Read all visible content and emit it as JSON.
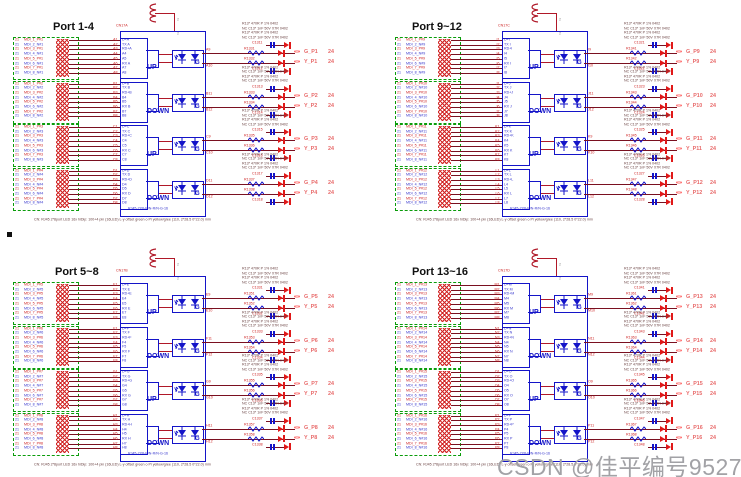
{
  "watermark": {
    "text": "CSDN @佳平编号9527"
  },
  "colors": {
    "blue": "#1414c8",
    "wire": "#7a1020",
    "red": "#cc2222",
    "green_box": "#0a9c0a",
    "flag": "#ff1c1c",
    "pink": "#e86a6a",
    "watermark": "#a2a2a6"
  },
  "left_page_ref": "21",
  "right_page_ref": "24",
  "shield_pin": "2",
  "flag_glyph": "«»",
  "led_labels": [
    "Y",
    "G"
  ],
  "pin_name_pattern": [
    "D+{L}",
    "TX {L}",
    "RD+{L}",
    "{L}4",
    "{L}5",
    "RX {L}",
    "{L}7",
    "{L}8"
  ],
  "connector_part": "RJ45-2X8-R/N-R/N-G-16",
  "connector_note": "CN: RJ45 2*8port LED 16x hiDip: 100+4 pin (16LED) L-y offset green o Pi yellow/gree (110, 2*28.5 0*22.0) mm",
  "rc_notes": [
    "R13* 470R P 1% 0402",
    "NC C13* 1nF 50V X7R 0402",
    "R13* 470R P 1% 0402",
    "NC C13* 1nF 50V X7R 0402"
  ],
  "quadrants": [
    {
      "title": "Port 1-4",
      "connector_ref": "CN17A",
      "groups": [
        {
          "letter": "A",
          "orientation": "UP",
          "led_pins": [
            "A9",
            "A10"
          ],
          "signals": [
            "MDI_1_P#1",
            "MDI_2_N#1",
            "MDI_3_P#1",
            "MDI_4_N#1",
            "MDI_5_P#1",
            "MDI_6_N#1",
            "MDI_7_P#1",
            "MDI_8_N#1"
          ],
          "outputs": [
            {
              "res": "R1331",
              "cap": "C1311",
              "flag": "G_P1"
            },
            {
              "res": "R1332",
              "cap": "C1312",
              "flag": "Y_P1"
            }
          ]
        },
        {
          "letter": "B",
          "orientation": "DOWN",
          "led_pins": [
            "B11",
            "B12"
          ],
          "signals": [
            "MDI_1_P#2",
            "MDI_2_N#2",
            "MDI_3_P#2",
            "MDI_4_N#2",
            "MDI_5_P#2",
            "MDI_6_N#2",
            "MDI_7_P#2",
            "MDI_8_N#2"
          ],
          "outputs": [
            {
              "res": "R1333",
              "cap": "C1313",
              "flag": "G_P2"
            },
            {
              "res": "R1334",
              "cap": "C1314",
              "flag": "Y_P2"
            }
          ]
        },
        {
          "letter": "C",
          "orientation": "UP",
          "led_pins": [
            "C9",
            "C10"
          ],
          "signals": [
            "MDI_1_P#3",
            "MDI_2_N#3",
            "MDI_3_P#3",
            "MDI_4_N#3",
            "MDI_5_P#3",
            "MDI_6_N#3",
            "MDI_7_P#3",
            "MDI_8_N#3"
          ],
          "outputs": [
            {
              "res": "R1335",
              "cap": "C1315",
              "flag": "G_P3"
            },
            {
              "res": "R1336",
              "cap": "C1316",
              "flag": "Y_P3"
            }
          ]
        },
        {
          "letter": "D",
          "orientation": "DOWN",
          "led_pins": [
            "D11",
            "D12"
          ],
          "signals": [
            "MDI_1_P#4",
            "MDI_2_N#4",
            "MDI_3_P#4",
            "MDI_4_N#4",
            "MDI_5_P#4",
            "MDI_6_N#4",
            "MDI_7_P#4",
            "MDI_8_N#4"
          ],
          "outputs": [
            {
              "res": "R1337",
              "cap": "C1317",
              "flag": "G_P4"
            },
            {
              "res": "R1338",
              "cap": "C1318",
              "flag": "Y_P4"
            }
          ]
        }
      ]
    },
    {
      "title": "Port 9~12",
      "connector_ref": "CN17C",
      "groups": [
        {
          "letter": "I",
          "orientation": "UP",
          "led_pins": [
            "I9",
            "I10"
          ],
          "signals": [
            "MDI_1_P#9",
            "MDI_2_N#9",
            "MDI_3_P#9",
            "MDI_4_N#9",
            "MDI_5_P#9",
            "MDI_6_N#9",
            "MDI_7_P#9",
            "MDI_8_N#9"
          ],
          "outputs": [
            {
              "res": "R1341",
              "cap": "C1321",
              "flag": "G_P9"
            },
            {
              "res": "R1342",
              "cap": "C1322",
              "flag": "Y_P9"
            }
          ]
        },
        {
          "letter": "J",
          "orientation": "DOWN",
          "led_pins": [
            "J11",
            "J12"
          ],
          "signals": [
            "MDI_1_P#10",
            "MDI_2_N#10",
            "MDI_3_P#10",
            "MDI_4_N#10",
            "MDI_5_P#10",
            "MDI_6_N#10",
            "MDI_7_P#10",
            "MDI_8_N#10"
          ],
          "outputs": [
            {
              "res": "R1343",
              "cap": "C1323",
              "flag": "G_P10"
            },
            {
              "res": "R1344",
              "cap": "C1324",
              "flag": "Y_P10"
            }
          ]
        },
        {
          "letter": "K",
          "orientation": "UP",
          "led_pins": [
            "K9",
            "K10"
          ],
          "signals": [
            "MDI_1_P#11",
            "MDI_2_N#11",
            "MDI_3_P#11",
            "MDI_4_N#11",
            "MDI_5_P#11",
            "MDI_6_N#11",
            "MDI_7_P#11",
            "MDI_8_N#11"
          ],
          "outputs": [
            {
              "res": "R1345",
              "cap": "C1325",
              "flag": "G_P11"
            },
            {
              "res": "R1346",
              "cap": "C1326",
              "flag": "Y_P11"
            }
          ]
        },
        {
          "letter": "L",
          "orientation": "DOWN",
          "led_pins": [
            "L11",
            "L12"
          ],
          "signals": [
            "MDI_1_P#12",
            "MDI_2_N#12",
            "MDI_3_P#12",
            "MDI_4_N#12",
            "MDI_5_P#12",
            "MDI_6_N#12",
            "MDI_7_P#12",
            "MDI_8_N#12"
          ],
          "outputs": [
            {
              "res": "R1347",
              "cap": "C1327",
              "flag": "G_P12"
            },
            {
              "res": "R1348",
              "cap": "C1328",
              "flag": "Y_P12"
            }
          ]
        }
      ]
    },
    {
      "title": "Port 5~8",
      "connector_ref": "CN17B",
      "groups": [
        {
          "letter": "E",
          "orientation": "UP",
          "led_pins": [
            "E9",
            "E10"
          ],
          "signals": [
            "MDI_1_P#5",
            "MDI_2_N#5",
            "MDI_3_P#5",
            "MDI_4_N#5",
            "MDI_5_P#5",
            "MDI_6_N#5",
            "MDI_7_P#5",
            "MDI_8_N#5"
          ],
          "outputs": [
            {
              "res": "R1351",
              "cap": "C1331",
              "flag": "G_P5"
            },
            {
              "res": "R1352",
              "cap": "C1332",
              "flag": "Y_P5"
            }
          ]
        },
        {
          "letter": "F",
          "orientation": "DOWN",
          "led_pins": [
            "F11",
            "F12"
          ],
          "signals": [
            "MDI_1_P#6",
            "MDI_2_N#6",
            "MDI_3_P#6",
            "MDI_4_N#6",
            "MDI_5_P#6",
            "MDI_6_N#6",
            "MDI_7_P#6",
            "MDI_8_N#6"
          ],
          "outputs": [
            {
              "res": "R1353",
              "cap": "C1333",
              "flag": "G_P6"
            },
            {
              "res": "R1354",
              "cap": "C1334",
              "flag": "Y_P6"
            }
          ]
        },
        {
          "letter": "G",
          "orientation": "UP",
          "led_pins": [
            "G9",
            "G10"
          ],
          "signals": [
            "MDI_1_P#7",
            "MDI_2_N#7",
            "MDI_3_P#7",
            "MDI_4_N#7",
            "MDI_5_P#7",
            "MDI_6_N#7",
            "MDI_7_P#7",
            "MDI_8_N#7"
          ],
          "outputs": [
            {
              "res": "R1355",
              "cap": "C1335",
              "flag": "G_P7"
            },
            {
              "res": "R1356",
              "cap": "C1336",
              "flag": "Y_P7"
            }
          ]
        },
        {
          "letter": "H",
          "orientation": "DOWN",
          "led_pins": [
            "H11",
            "H12"
          ],
          "signals": [
            "MDI_1_P#8",
            "MDI_2_N#8",
            "MDI_3_P#8",
            "MDI_4_N#8",
            "MDI_5_P#8",
            "MDI_6_N#8",
            "MDI_7_P#8",
            "MDI_8_N#8"
          ],
          "outputs": [
            {
              "res": "R1357",
              "cap": "C1337",
              "flag": "G_P8"
            },
            {
              "res": "R1358",
              "cap": "C1338",
              "flag": "Y_P8"
            }
          ]
        }
      ]
    },
    {
      "title": "Port 13~16",
      "connector_ref": "CN17D",
      "groups": [
        {
          "letter": "M",
          "orientation": "UP",
          "led_pins": [
            "M9",
            "M10"
          ],
          "signals": [
            "MDI_1_P#13",
            "MDI_2_N#13",
            "MDI_3_P#13",
            "MDI_4_N#13",
            "MDI_5_P#13",
            "MDI_6_N#13",
            "MDI_7_P#13",
            "MDI_8_N#13"
          ],
          "outputs": [
            {
              "res": "R1361",
              "cap": "C1341",
              "flag": "G_P13"
            },
            {
              "res": "R1362",
              "cap": "C1342",
              "flag": "Y_P13"
            }
          ]
        },
        {
          "letter": "N",
          "orientation": "DOWN",
          "led_pins": [
            "N11",
            "N12"
          ],
          "signals": [
            "MDI_1_P#14",
            "MDI_2_N#14",
            "MDI_3_P#14",
            "MDI_4_N#14",
            "MDI_5_P#14",
            "MDI_6_N#14",
            "MDI_7_P#14",
            "MDI_8_N#14"
          ],
          "outputs": [
            {
              "res": "R1363",
              "cap": "C1343",
              "flag": "G_P14"
            },
            {
              "res": "R1364",
              "cap": "C1344",
              "flag": "Y_P14"
            }
          ]
        },
        {
          "letter": "O",
          "orientation": "UP",
          "led_pins": [
            "O9",
            "O10"
          ],
          "signals": [
            "MDI_1_P#15",
            "MDI_2_N#15",
            "MDI_3_P#15",
            "MDI_4_N#15",
            "MDI_5_P#15",
            "MDI_6_N#15",
            "MDI_7_P#15",
            "MDI_8_N#15"
          ],
          "outputs": [
            {
              "res": "R1365",
              "cap": "C1345",
              "flag": "G_P15"
            },
            {
              "res": "R1366",
              "cap": "C1346",
              "flag": "Y_P15"
            }
          ]
        },
        {
          "letter": "P",
          "orientation": "DOWN",
          "led_pins": [
            "P11",
            "P12"
          ],
          "signals": [
            "MDI_1_P#16",
            "MDI_2_N#16",
            "MDI_3_P#16",
            "MDI_4_N#16",
            "MDI_5_P#16",
            "MDI_6_N#16",
            "MDI_7_P#16",
            "MDI_8_N#16"
          ],
          "outputs": [
            {
              "res": "R1367",
              "cap": "C1347",
              "flag": "G_P16"
            },
            {
              "res": "R1368",
              "cap": "C1348",
              "flag": "Y_P16"
            }
          ]
        }
      ]
    }
  ]
}
